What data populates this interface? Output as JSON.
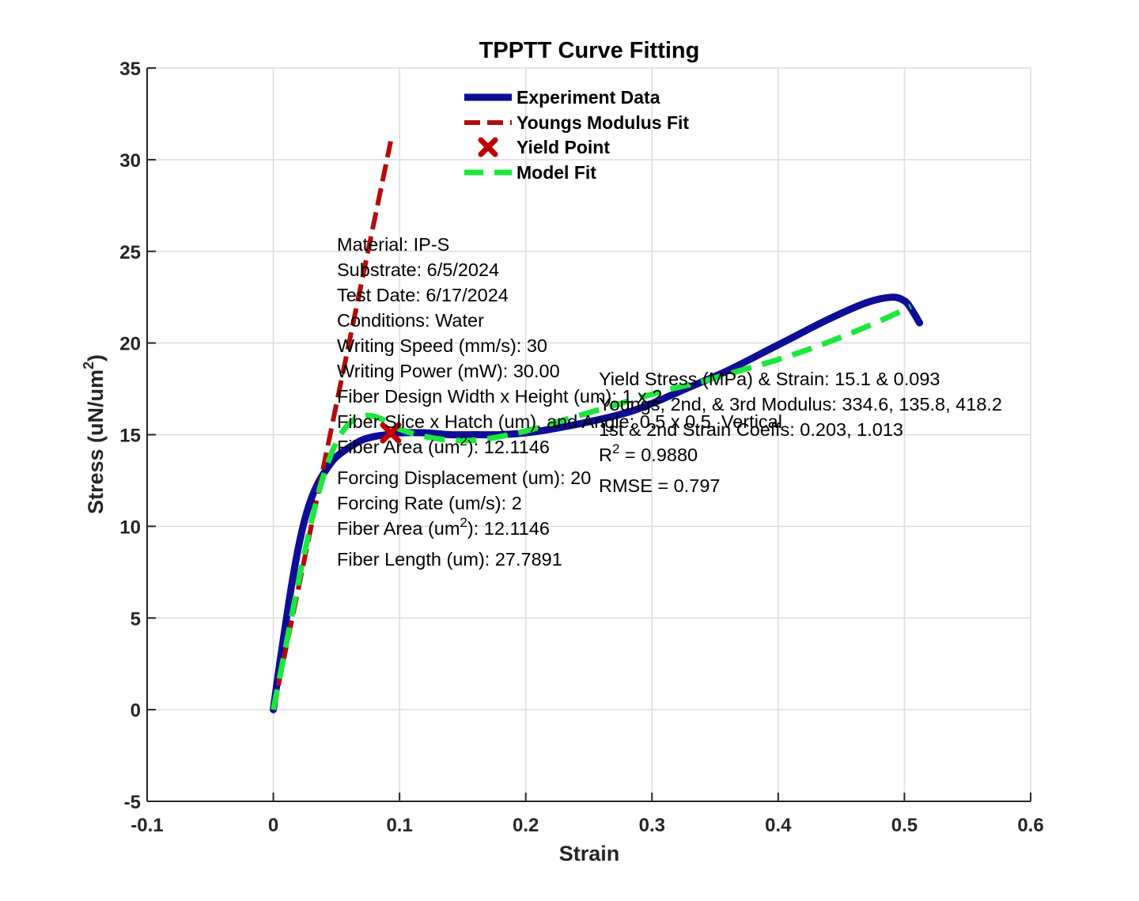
{
  "chart_data": {
    "type": "line",
    "title": "TPPTT Curve Fitting",
    "xlabel": "Strain",
    "ylabel_main": "Stress (uN/um",
    "ylabel_sup": "2",
    "ylabel_end": ")",
    "xlim": [
      -0.1,
      0.6
    ],
    "ylim": [
      -5,
      35
    ],
    "xticks": [
      -0.1,
      0,
      0.1,
      0.2,
      0.3,
      0.4,
      0.5,
      0.6
    ],
    "xtick_labels": [
      "-0.1",
      "0",
      "0.1",
      "0.2",
      "0.3",
      "0.4",
      "0.5",
      "0.6"
    ],
    "yticks": [
      -5,
      0,
      5,
      10,
      15,
      20,
      25,
      30,
      35
    ],
    "ytick_labels": [
      "-5",
      "0",
      "5",
      "10",
      "15",
      "20",
      "25",
      "30",
      "35"
    ],
    "grid": true,
    "legend_placement": "top-center",
    "series": [
      {
        "name": "Experiment Data",
        "style": "solid",
        "color": "#0d0d96",
        "x": [
          0,
          0.005,
          0.01,
          0.015,
          0.02,
          0.025,
          0.03,
          0.035,
          0.04,
          0.045,
          0.05,
          0.06,
          0.07,
          0.08,
          0.09,
          0.1,
          0.12,
          0.14,
          0.16,
          0.18,
          0.2,
          0.22,
          0.25,
          0.28,
          0.3,
          0.33,
          0.36,
          0.4,
          0.44,
          0.47,
          0.49,
          0.5,
          0.505,
          0.512
        ],
        "y": [
          0,
          2.5,
          4.8,
          7.0,
          8.9,
          10.4,
          11.5,
          12.3,
          12.9,
          13.4,
          13.8,
          14.3,
          14.7,
          14.9,
          15.0,
          15.1,
          15.1,
          15.0,
          15.0,
          15.0,
          15.1,
          15.3,
          15.7,
          16.2,
          16.7,
          17.6,
          18.5,
          19.9,
          21.3,
          22.2,
          22.5,
          22.3,
          21.9,
          21.1
        ]
      },
      {
        "name": "Youngs Modulus Fit",
        "style": "dashed",
        "color": "#b30c0c",
        "x": [
          0,
          0.093
        ],
        "y": [
          0,
          31
        ]
      },
      {
        "name": "Yield Point",
        "style": "marker",
        "color": "#c00000",
        "x": [
          0.093
        ],
        "y": [
          15.1
        ]
      },
      {
        "name": "Model Fit",
        "style": "dashed",
        "color": "#1ae83c",
        "x": [
          0,
          0.01,
          0.02,
          0.03,
          0.04,
          0.05,
          0.06,
          0.07,
          0.08,
          0.09,
          0.1,
          0.12,
          0.14,
          0.16,
          0.18,
          0.2,
          0.22,
          0.25,
          0.28,
          0.31,
          0.34,
          0.37,
          0.4,
          0.43,
          0.46,
          0.49,
          0.505
        ],
        "y": [
          0,
          3.5,
          7.0,
          10.2,
          12.8,
          14.6,
          15.6,
          16.0,
          16.0,
          15.7,
          15.3,
          14.9,
          14.7,
          14.7,
          14.9,
          15.2,
          15.6,
          16.2,
          16.8,
          17.4,
          17.9,
          18.5,
          19.1,
          19.8,
          20.6,
          21.5,
          22.0
        ]
      }
    ],
    "annotation_left": [
      {
        "text": "Material: IP-S"
      },
      {
        "text": "Substrate: 6/5/2024"
      },
      {
        "text": "Test Date: 6/17/2024"
      },
      {
        "text": "Conditions: Water"
      },
      {
        "text": "Writing Speed (mm/s): 30"
      },
      {
        "text": "Writing Power (mW): 30.00"
      },
      {
        "text": "Fiber Design Width x Height (um): 1 x 2"
      },
      {
        "text": "Fiber Slice x Hatch (um), and Angle: 0.5 x 0.5, Vertical"
      },
      {
        "pre": "Fiber Area (um",
        "sup": "2",
        "post": "): 12.1146"
      },
      {
        "text": "Forcing Displacement (um): 20"
      },
      {
        "text": "Forcing Rate (um/s): 2"
      },
      {
        "pre": "Fiber Area (um",
        "sup": "2",
        "post": "): 12.1146"
      },
      {
        "text": "Fiber Length (um): 27.7891"
      }
    ],
    "annotation_right": [
      {
        "text": "Yield Stress (MPa) & Strain: 15.1 & 0.093"
      },
      {
        "text": "Youngs, 2nd, & 3rd Modulus: 334.6, 135.8, 418.2"
      },
      {
        "text": "1st & 2nd Strain Coeffs: 0.203, 1.013"
      },
      {
        "pre": "R",
        "sup": "2",
        "post": " = 0.9880"
      },
      {
        "text": "RMSE = 0.797"
      }
    ]
  }
}
